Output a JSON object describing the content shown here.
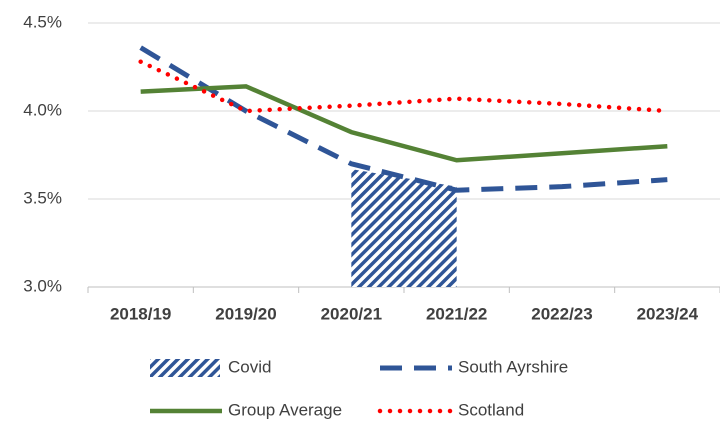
{
  "chart_data": {
    "type": "line",
    "categories": [
      "2018/19",
      "2019/20",
      "2020/21",
      "2021/22",
      "2022/23",
      "2023/24"
    ],
    "series": [
      {
        "name": "Covid",
        "color": "#2f5597",
        "style": "hatched",
        "values": [
          null,
          null,
          3.67,
          3.57,
          null,
          null
        ]
      },
      {
        "name": "South Ayrshire",
        "color": "#2f5597",
        "style": "dashed",
        "values": [
          4.36,
          4.0,
          3.7,
          3.55,
          3.57,
          3.61
        ]
      },
      {
        "name": "Group Average",
        "color": "#548235",
        "style": "solid",
        "values": [
          4.11,
          4.14,
          3.88,
          3.72,
          3.76,
          3.8
        ]
      },
      {
        "name": "Scotland",
        "color": "#ff0000",
        "style": "dotted",
        "values": [
          4.28,
          4.0,
          4.03,
          4.07,
          4.04,
          4.0
        ]
      }
    ],
    "ylim": [
      3.0,
      4.5
    ],
    "yticks": [
      {
        "value": 3.0,
        "label": "3.0%"
      },
      {
        "value": 3.5,
        "label": "3.5%"
      },
      {
        "value": 4.0,
        "label": "4.0%"
      },
      {
        "value": 4.5,
        "label": "4.5%"
      }
    ],
    "grid": true,
    "legend": "bottom"
  }
}
